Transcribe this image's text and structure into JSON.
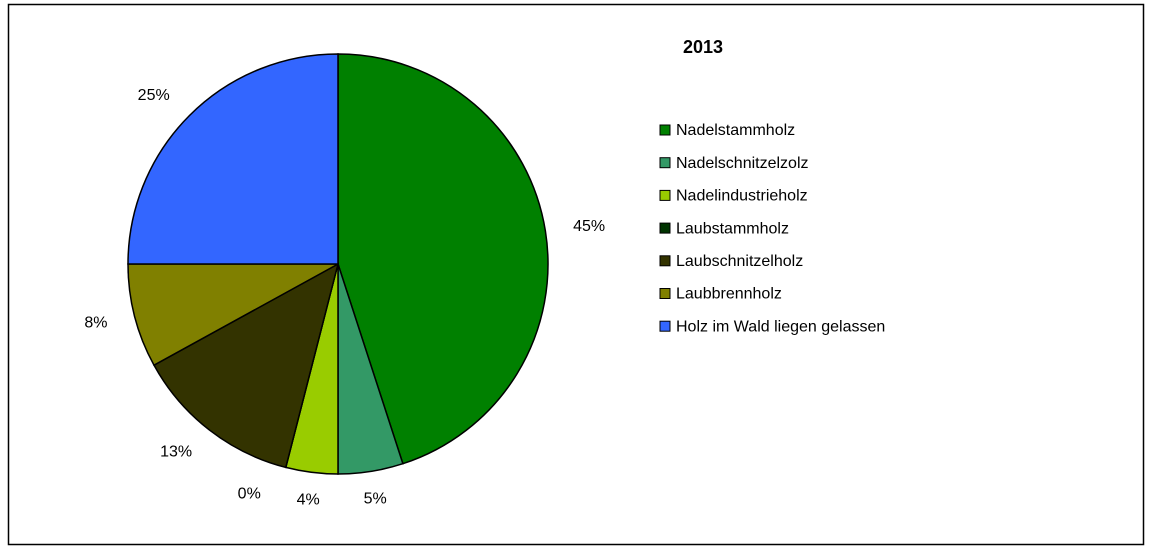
{
  "chart_data": {
    "type": "pie",
    "title": "2013",
    "categories": [
      "Nadelstammholz",
      "Nadelschnitzelzolz",
      "Nadelindustrieholz",
      "Laubstammholz",
      "Laubschnitzelholz",
      "Laubbrennholz",
      "Holz im Wald liegen gelassen"
    ],
    "values": [
      45,
      5,
      4,
      0,
      13,
      8,
      25
    ],
    "value_labels": [
      "45%",
      "5%",
      "4%",
      "0%",
      "13%",
      "8%",
      "25%"
    ],
    "colors": [
      "#008000",
      "#339966",
      "#99cc00",
      "#003300",
      "#333300",
      "#808000",
      "#3366ff"
    ],
    "legend": "right"
  }
}
